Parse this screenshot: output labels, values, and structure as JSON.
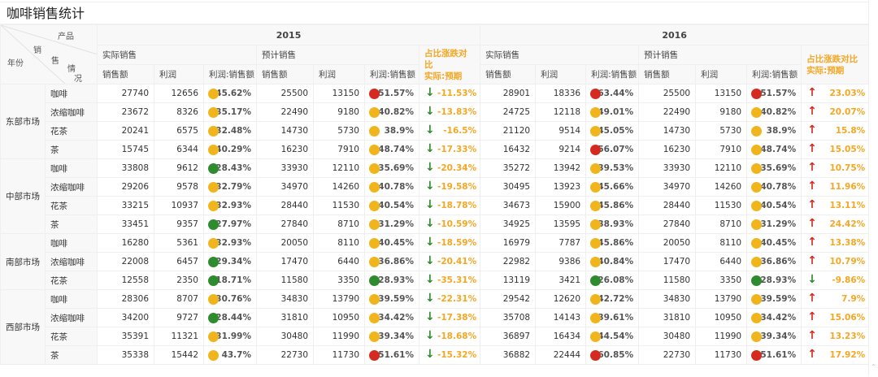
{
  "title": "咖啡销售统计",
  "colors": {
    "red": "#d52a1f",
    "yellow": "#f0b41c",
    "green": "#2e8b2e",
    "accent_orange": "#f5a623"
  },
  "header": {
    "corner": {
      "product": "产品",
      "sales1": "销",
      "sales2": "售",
      "sit1": "情",
      "sit2": "况",
      "year": "年份"
    },
    "years": [
      "2015",
      "2016"
    ],
    "groups": {
      "actual": "实际销售",
      "planned": "预计销售",
      "compare_line1": "占比涨跌对比",
      "compare_line2": "实际:预期"
    },
    "cols": {
      "sales": "销售额",
      "profit": "利润",
      "ratio": "利润:销售额"
    }
  },
  "regions": [
    {
      "name": "东部市场",
      "rows": [
        {
          "product": "咖啡",
          "y2015": {
            "a_sales": "27740",
            "a_profit": "12656",
            "a_ratio": "45.62%",
            "a_color": "yellow",
            "p_sales": "25500",
            "p_profit": "13150",
            "p_ratio": "51.57%",
            "p_color": "red",
            "trend": "down",
            "cmp": "-11.53%"
          },
          "y2016": {
            "a_sales": "28901",
            "a_profit": "18336",
            "a_ratio": "63.44%",
            "a_color": "red",
            "p_sales": "25500",
            "p_profit": "13150",
            "p_ratio": "51.57%",
            "p_color": "red",
            "trend": "up",
            "cmp": "23.03%"
          }
        },
        {
          "product": "浓缩咖啡",
          "y2015": {
            "a_sales": "23672",
            "a_profit": "8326",
            "a_ratio": "35.17%",
            "a_color": "yellow",
            "p_sales": "22490",
            "p_profit": "9180",
            "p_ratio": "40.82%",
            "p_color": "yellow",
            "trend": "down",
            "cmp": "-13.83%"
          },
          "y2016": {
            "a_sales": "24725",
            "a_profit": "12118",
            "a_ratio": "49.01%",
            "a_color": "yellow",
            "p_sales": "22490",
            "p_profit": "9180",
            "p_ratio": "40.82%",
            "p_color": "yellow",
            "trend": "up",
            "cmp": "20.07%"
          }
        },
        {
          "product": "花茶",
          "y2015": {
            "a_sales": "20241",
            "a_profit": "6575",
            "a_ratio": "32.48%",
            "a_color": "yellow",
            "p_sales": "14730",
            "p_profit": "5730",
            "p_ratio": "38.9%",
            "p_color": "yellow",
            "trend": "down",
            "cmp": "-16.5%"
          },
          "y2016": {
            "a_sales": "21120",
            "a_profit": "9514",
            "a_ratio": "45.05%",
            "a_color": "yellow",
            "p_sales": "14730",
            "p_profit": "5730",
            "p_ratio": "38.9%",
            "p_color": "yellow",
            "trend": "up",
            "cmp": "15.8%"
          }
        },
        {
          "product": "茶",
          "y2015": {
            "a_sales": "15745",
            "a_profit": "6344",
            "a_ratio": "40.29%",
            "a_color": "yellow",
            "p_sales": "16230",
            "p_profit": "7910",
            "p_ratio": "48.74%",
            "p_color": "yellow",
            "trend": "down",
            "cmp": "-17.33%"
          },
          "y2016": {
            "a_sales": "16432",
            "a_profit": "9214",
            "a_ratio": "56.07%",
            "a_color": "red",
            "p_sales": "16230",
            "p_profit": "7910",
            "p_ratio": "48.74%",
            "p_color": "yellow",
            "trend": "up",
            "cmp": "15.05%"
          }
        }
      ]
    },
    {
      "name": "中部市场",
      "rows": [
        {
          "product": "咖啡",
          "y2015": {
            "a_sales": "33808",
            "a_profit": "9612",
            "a_ratio": "28.43%",
            "a_color": "green",
            "p_sales": "33930",
            "p_profit": "12110",
            "p_ratio": "35.69%",
            "p_color": "yellow",
            "trend": "down",
            "cmp": "-20.34%"
          },
          "y2016": {
            "a_sales": "35272",
            "a_profit": "13942",
            "a_ratio": "39.53%",
            "a_color": "yellow",
            "p_sales": "33930",
            "p_profit": "12110",
            "p_ratio": "35.69%",
            "p_color": "yellow",
            "trend": "up",
            "cmp": "10.75%"
          }
        },
        {
          "product": "浓缩咖啡",
          "y2015": {
            "a_sales": "29206",
            "a_profit": "9578",
            "a_ratio": "32.79%",
            "a_color": "yellow",
            "p_sales": "34970",
            "p_profit": "14260",
            "p_ratio": "40.78%",
            "p_color": "yellow",
            "trend": "down",
            "cmp": "-19.58%"
          },
          "y2016": {
            "a_sales": "30495",
            "a_profit": "13923",
            "a_ratio": "45.66%",
            "a_color": "yellow",
            "p_sales": "34970",
            "p_profit": "14260",
            "p_ratio": "40.78%",
            "p_color": "yellow",
            "trend": "up",
            "cmp": "11.96%"
          }
        },
        {
          "product": "花茶",
          "y2015": {
            "a_sales": "33215",
            "a_profit": "10937",
            "a_ratio": "32.93%",
            "a_color": "yellow",
            "p_sales": "28440",
            "p_profit": "11530",
            "p_ratio": "40.54%",
            "p_color": "yellow",
            "trend": "down",
            "cmp": "-18.78%"
          },
          "y2016": {
            "a_sales": "34673",
            "a_profit": "15900",
            "a_ratio": "45.86%",
            "a_color": "yellow",
            "p_sales": "28440",
            "p_profit": "11530",
            "p_ratio": "40.54%",
            "p_color": "yellow",
            "trend": "up",
            "cmp": "13.11%"
          }
        },
        {
          "product": "茶",
          "y2015": {
            "a_sales": "33451",
            "a_profit": "9357",
            "a_ratio": "27.97%",
            "a_color": "green",
            "p_sales": "27840",
            "p_profit": "8710",
            "p_ratio": "31.29%",
            "p_color": "yellow",
            "trend": "down",
            "cmp": "-10.59%"
          },
          "y2016": {
            "a_sales": "34925",
            "a_profit": "13595",
            "a_ratio": "38.93%",
            "a_color": "yellow",
            "p_sales": "27840",
            "p_profit": "8710",
            "p_ratio": "31.29%",
            "p_color": "yellow",
            "trend": "up",
            "cmp": "24.42%"
          }
        }
      ]
    },
    {
      "name": "南部市场",
      "rows": [
        {
          "product": "咖啡",
          "y2015": {
            "a_sales": "16280",
            "a_profit": "5361",
            "a_ratio": "32.93%",
            "a_color": "yellow",
            "p_sales": "20050",
            "p_profit": "8110",
            "p_ratio": "40.45%",
            "p_color": "yellow",
            "trend": "down",
            "cmp": "-18.59%"
          },
          "y2016": {
            "a_sales": "16979",
            "a_profit": "7787",
            "a_ratio": "45.86%",
            "a_color": "yellow",
            "p_sales": "20050",
            "p_profit": "8110",
            "p_ratio": "40.45%",
            "p_color": "yellow",
            "trend": "up",
            "cmp": "13.38%"
          }
        },
        {
          "product": "浓缩咖啡",
          "y2015": {
            "a_sales": "22008",
            "a_profit": "6457",
            "a_ratio": "29.34%",
            "a_color": "green",
            "p_sales": "17470",
            "p_profit": "6440",
            "p_ratio": "36.86%",
            "p_color": "yellow",
            "trend": "down",
            "cmp": "-20.41%"
          },
          "y2016": {
            "a_sales": "22982",
            "a_profit": "9386",
            "a_ratio": "40.84%",
            "a_color": "yellow",
            "p_sales": "17470",
            "p_profit": "6440",
            "p_ratio": "36.86%",
            "p_color": "yellow",
            "trend": "up",
            "cmp": "10.79%"
          }
        },
        {
          "product": "花茶",
          "y2015": {
            "a_sales": "12558",
            "a_profit": "2350",
            "a_ratio": "18.71%",
            "a_color": "green",
            "p_sales": "11580",
            "p_profit": "3350",
            "p_ratio": "28.93%",
            "p_color": "green",
            "trend": "down",
            "cmp": "-35.31%"
          },
          "y2016": {
            "a_sales": "13119",
            "a_profit": "3421",
            "a_ratio": "26.08%",
            "a_color": "green",
            "p_sales": "11580",
            "p_profit": "3350",
            "p_ratio": "28.93%",
            "p_color": "green",
            "trend": "down",
            "cmp": "-9.86%"
          }
        }
      ]
    },
    {
      "name": "西部市场",
      "rows": [
        {
          "product": "咖啡",
          "y2015": {
            "a_sales": "28306",
            "a_profit": "8707",
            "a_ratio": "30.76%",
            "a_color": "yellow",
            "p_sales": "34830",
            "p_profit": "13790",
            "p_ratio": "39.59%",
            "p_color": "yellow",
            "trend": "down",
            "cmp": "-22.31%"
          },
          "y2016": {
            "a_sales": "29542",
            "a_profit": "12620",
            "a_ratio": "42.72%",
            "a_color": "yellow",
            "p_sales": "34830",
            "p_profit": "13790",
            "p_ratio": "39.59%",
            "p_color": "yellow",
            "trend": "up",
            "cmp": "7.9%"
          }
        },
        {
          "product": "浓缩咖啡",
          "y2015": {
            "a_sales": "34200",
            "a_profit": "9727",
            "a_ratio": "28.44%",
            "a_color": "green",
            "p_sales": "31810",
            "p_profit": "10950",
            "p_ratio": "34.42%",
            "p_color": "yellow",
            "trend": "down",
            "cmp": "-17.38%"
          },
          "y2016": {
            "a_sales": "35708",
            "a_profit": "14143",
            "a_ratio": "39.61%",
            "a_color": "yellow",
            "p_sales": "31810",
            "p_profit": "10950",
            "p_ratio": "34.42%",
            "p_color": "yellow",
            "trend": "up",
            "cmp": "15.06%"
          }
        },
        {
          "product": "花茶",
          "y2015": {
            "a_sales": "35391",
            "a_profit": "11321",
            "a_ratio": "31.99%",
            "a_color": "yellow",
            "p_sales": "30480",
            "p_profit": "11990",
            "p_ratio": "39.34%",
            "p_color": "yellow",
            "trend": "down",
            "cmp": "-18.68%"
          },
          "y2016": {
            "a_sales": "36897",
            "a_profit": "16434",
            "a_ratio": "44.54%",
            "a_color": "yellow",
            "p_sales": "30480",
            "p_profit": "11990",
            "p_ratio": "39.34%",
            "p_color": "yellow",
            "trend": "up",
            "cmp": "13.23%"
          }
        },
        {
          "product": "茶",
          "y2015": {
            "a_sales": "35338",
            "a_profit": "15442",
            "a_ratio": "43.7%",
            "a_color": "yellow",
            "p_sales": "22730",
            "p_profit": "11730",
            "p_ratio": "51.61%",
            "p_color": "red",
            "trend": "down",
            "cmp": "-15.32%"
          },
          "y2016": {
            "a_sales": "36882",
            "a_profit": "22444",
            "a_ratio": "60.85%",
            "a_color": "red",
            "p_sales": "22730",
            "p_profit": "11730",
            "p_ratio": "51.61%",
            "p_color": "red",
            "trend": "up",
            "cmp": "17.92%"
          }
        }
      ]
    }
  ],
  "icons": {
    "up": "↑",
    "down": "↓",
    "scroll": "⌃⌄"
  }
}
